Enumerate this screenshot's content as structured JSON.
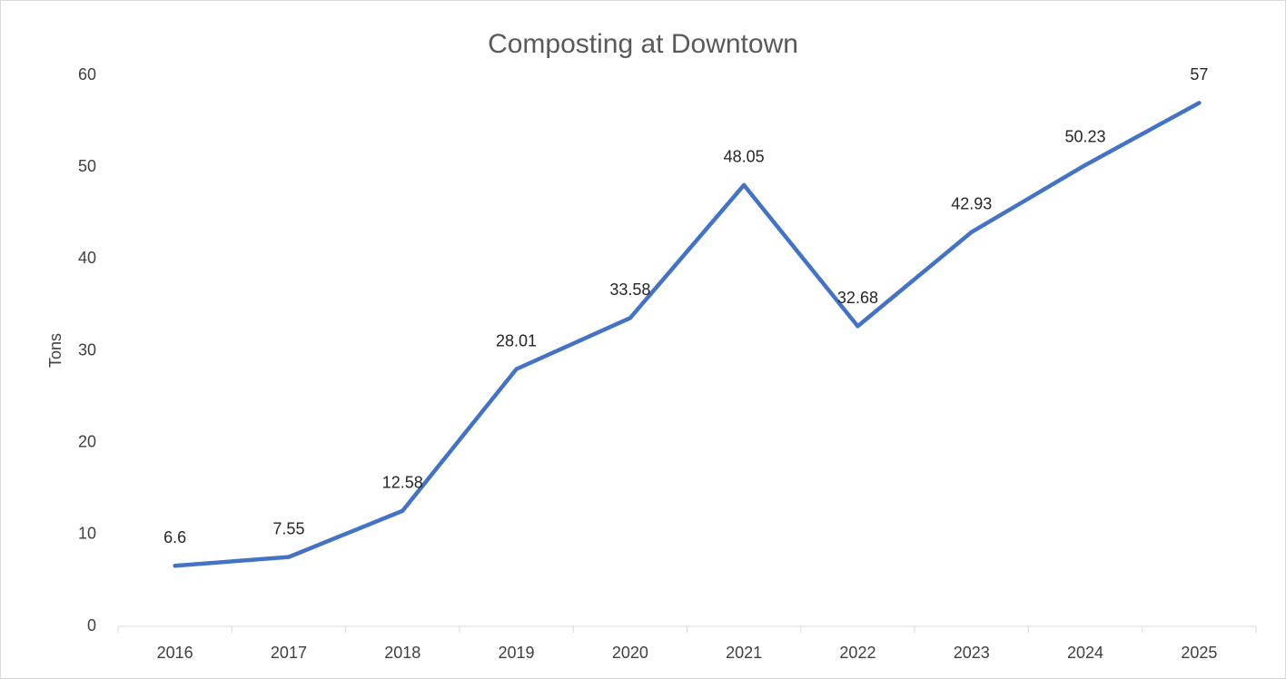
{
  "chart_data": {
    "type": "line",
    "title": "Composting at Downtown",
    "y_label": "Tons",
    "categories": [
      "2016",
      "2017",
      "2018",
      "2019",
      "2020",
      "2021",
      "2022",
      "2023",
      "2024",
      "2025"
    ],
    "series": [
      {
        "name": "Tons",
        "color": "#4472c4",
        "values": [
          6.6,
          7.55,
          12.58,
          28.01,
          33.58,
          48.05,
          32.68,
          42.93,
          50.23,
          57
        ]
      }
    ],
    "ylim": [
      0,
      60
    ],
    "yticks": [
      0,
      10,
      20,
      30,
      40,
      50,
      60
    ],
    "grid": false,
    "data_labels": true,
    "legend": false
  }
}
